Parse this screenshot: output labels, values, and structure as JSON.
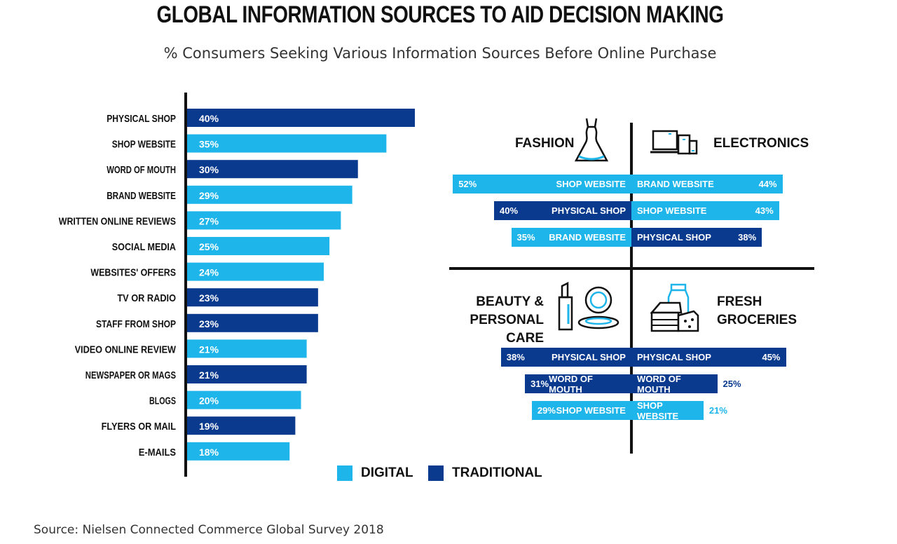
{
  "title": "GLOBAL INFORMATION SOURCES TO AID DECISION MAKING",
  "subtitle": "% Consumers Seeking Various Information Sources Before Online Purchase",
  "source": "Source: Nielsen Connected Commerce Global Survey 2018",
  "colors": {
    "digital": "#1eb5ea",
    "traditional": "#0a3a8e",
    "axis": "#111111"
  },
  "legend": [
    {
      "label": "DIGITAL",
      "type": "digital"
    },
    {
      "label": "TRADITIONAL",
      "type": "traditional"
    }
  ],
  "chart_data": {
    "type": "bar",
    "orientation": "horizontal",
    "categories": [
      "PHYSICAL SHOP",
      "SHOP WEBSITE",
      "WORD OF MOUTH",
      "BRAND WEBSITE",
      "WRITTEN ONLINE REVIEWS",
      "SOCIAL MEDIA",
      "WEBSITES' OFFERS",
      "TV OR RADIO",
      "STAFF FROM SHOP",
      "VIDEO ONLINE REVIEW",
      "NEWSPAPER OR MAGS",
      "BLOGS",
      "FLYERS OR MAIL",
      "E-MAILS"
    ],
    "values": [
      40,
      35,
      30,
      29,
      27,
      25,
      24,
      23,
      23,
      21,
      21,
      20,
      19,
      18
    ],
    "value_labels": [
      "40%",
      "35%",
      "30%",
      "29%",
      "27%",
      "25%",
      "24%",
      "23%",
      "23%",
      "21%",
      "21%",
      "20%",
      "19%",
      "18%"
    ],
    "types": [
      "traditional",
      "digital",
      "traditional",
      "digital",
      "digital",
      "digital",
      "digital",
      "traditional",
      "traditional",
      "digital",
      "traditional",
      "digital",
      "traditional",
      "digital"
    ],
    "xlim": [
      0,
      40
    ],
    "title": "GLOBAL INFORMATION SOURCES TO AID DECISION MAKING",
    "xlabel": "",
    "ylabel": ""
  },
  "categories_panel": {
    "fashion": {
      "title": "FASHION",
      "items": [
        {
          "label": "SHOP WEBSITE",
          "value": 52,
          "value_label": "52%",
          "type": "digital"
        },
        {
          "label": "PHYSICAL SHOP",
          "value": 40,
          "value_label": "40%",
          "type": "traditional"
        },
        {
          "label": "BRAND WEBSITE",
          "value": 35,
          "value_label": "35%",
          "type": "digital"
        }
      ]
    },
    "electronics": {
      "title": "ELECTRONICS",
      "items": [
        {
          "label": "BRAND WEBSITE",
          "value": 44,
          "value_label": "44%",
          "type": "digital"
        },
        {
          "label": "SHOP WEBSITE",
          "value": 43,
          "value_label": "43%",
          "type": "digital"
        },
        {
          "label": "PHYSICAL SHOP",
          "value": 38,
          "value_label": "38%",
          "type": "traditional"
        }
      ]
    },
    "beauty": {
      "title_line1": "BEAUTY &",
      "title_line2": "PERSONAL CARE",
      "items": [
        {
          "label": "PHYSICAL SHOP",
          "value": 38,
          "value_label": "38%",
          "type": "traditional"
        },
        {
          "label": "WORD OF MOUTH",
          "value": 31,
          "value_label": "31%",
          "type": "traditional"
        },
        {
          "label": "SHOP WEBSITE",
          "value": 29,
          "value_label": "29%",
          "type": "digital"
        }
      ]
    },
    "groceries": {
      "title_line1": "FRESH",
      "title_line2": "GROCERIES",
      "items": [
        {
          "label": "PHYSICAL SHOP",
          "value": 45,
          "value_label": "45%",
          "type": "traditional"
        },
        {
          "label": "WORD OF MOUTH",
          "value": 25,
          "value_label": "25%",
          "type": "traditional"
        },
        {
          "label": "SHOP WEBSITE",
          "value": 21,
          "value_label": "21%",
          "type": "digital"
        }
      ]
    }
  },
  "icons": [
    "dress-icon",
    "devices-icon",
    "cosmetics-icon",
    "groceries-icon"
  ]
}
